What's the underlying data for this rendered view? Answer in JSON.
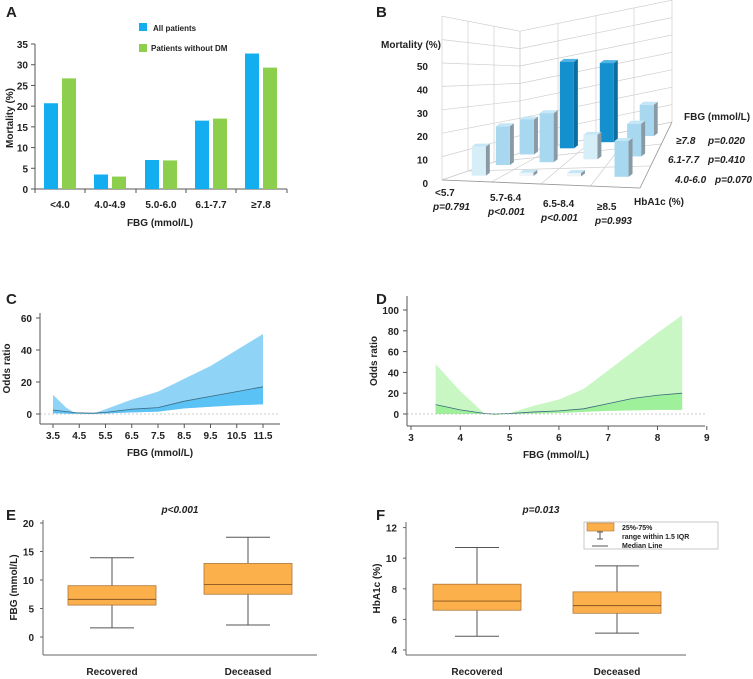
{
  "chart_data": [
    {
      "panel": "A",
      "type": "bar",
      "categories": [
        "<4.0",
        "4.0-4.9",
        "5.0-6.0",
        "6.1-7.7",
        "≥7.8"
      ],
      "series": [
        {
          "name": "All patients",
          "values": [
            20.7,
            3.5,
            7.0,
            16.5,
            32.7
          ],
          "color": "#12aef0"
        },
        {
          "name": "Patients without DM",
          "values": [
            26.7,
            3.0,
            6.9,
            17.0,
            29.3
          ],
          "color": "#8ccf4d"
        }
      ],
      "xlabel": "FBG (mmol/L)",
      "ylabel": "Mortality (%)",
      "ylim": [
        0,
        35
      ],
      "yticks": [
        0,
        5,
        10,
        15,
        20,
        25,
        30,
        35
      ],
      "legend": "top"
    },
    {
      "panel": "B",
      "type": "bar3d",
      "x_categories": [
        "<5.7",
        "5.7-6.4",
        "6.5-8.4",
        "≥8.5"
      ],
      "x_pvalues": [
        "p=0.791",
        "p<0.001",
        "p<0.001",
        "p=0.993"
      ],
      "xlabel": "HbA1c (%)",
      "depth_categories": [
        "4.0-6.0",
        "6.1-7.7",
        "≥7.8"
      ],
      "depth_pvalues": [
        "p=0.070",
        "p=0.410",
        "p=0.020"
      ],
      "depthlabel": "FBG (mmol/L)",
      "zlabel": "Mortality (%)",
      "zticks": [
        0,
        10,
        20,
        30,
        40,
        50
      ],
      "values": [
        [
          13,
          19,
          19
        ],
        [
          1.5,
          24,
          47
        ],
        [
          1.5,
          12,
          43
        ],
        [
          16,
          16,
          17
        ]
      ],
      "colors": {
        "high": "#1590cf",
        "mid": "#a8d8f0",
        "low": "#d6eef8",
        "min": "#eef4f7"
      }
    },
    {
      "panel": "C",
      "type": "area",
      "x": [
        3.5,
        4.0,
        4.4,
        5.0,
        5.5,
        6.5,
        7.5,
        8.5,
        9.5,
        10.5,
        11.5
      ],
      "odds_ratio": [
        2.5,
        1.5,
        0.8,
        0.5,
        1.0,
        3.0,
        4.0,
        8.0,
        11.0,
        14.0,
        17.0
      ],
      "ci_upper": [
        12,
        4,
        0,
        0,
        3,
        9,
        14,
        22,
        30,
        40,
        50
      ],
      "ci_lower": [
        0.5,
        0.2,
        0,
        0,
        0.3,
        1.0,
        1.5,
        3.5,
        4.5,
        5.5,
        6.0
      ],
      "xlabel": "FBG (mmol/L)",
      "ylabel": "Odds ratio",
      "xlim": [
        3.5,
        11.5
      ],
      "ylim": [
        -5,
        62
      ],
      "xticks": [
        "3.5",
        "4.5",
        "5.5",
        "6.5",
        "7.5",
        "8.5",
        "9.5",
        "10.5",
        "11.5"
      ],
      "yticks": [
        0,
        20,
        40,
        60
      ],
      "color": "#5bc2f5",
      "band_color": "#8fd3f7"
    },
    {
      "panel": "D",
      "type": "area",
      "x": [
        3.5,
        4.0,
        4.5,
        4.7,
        5.0,
        5.5,
        6.0,
        6.5,
        7.0,
        7.5,
        8.0,
        8.5
      ],
      "odds_ratio": [
        9,
        4,
        0.5,
        0,
        0.5,
        2,
        3,
        5,
        10,
        15,
        18,
        20
      ],
      "ci_upper": [
        48,
        22,
        0,
        0,
        1,
        8,
        14,
        24,
        42,
        60,
        78,
        95
      ],
      "ci_lower": [
        0,
        0,
        0,
        -1,
        0,
        0.5,
        1,
        2,
        3,
        3.5,
        4,
        4
      ],
      "xlabel": "FBG (mmol/L)",
      "ylabel": "Odds ratio",
      "xlim": [
        3,
        9
      ],
      "ylim": [
        -10,
        108
      ],
      "xticks": [
        "3",
        "4",
        "5",
        "6",
        "7",
        "8",
        "9"
      ],
      "yticks": [
        0,
        20,
        40,
        60,
        80,
        100
      ],
      "color": "#9ff09a",
      "band_color": "#c8f7c4"
    },
    {
      "panel": "E",
      "type": "box",
      "title": "p<0.001",
      "categories": [
        "Recovered",
        "Deceased"
      ],
      "boxes": [
        {
          "min": 1.6,
          "q1": 5.6,
          "median": 6.6,
          "q3": 9.0,
          "max": 13.9
        },
        {
          "min": 2.1,
          "q1": 7.5,
          "median": 9.2,
          "q3": 12.9,
          "max": 17.5
        }
      ],
      "ylabel": "FBG (mmol/L)",
      "ylim": [
        -3,
        20
      ],
      "yticks": [
        0,
        5,
        10,
        15,
        20
      ],
      "color": "#fbb04b"
    },
    {
      "panel": "F",
      "type": "box",
      "title": "p=0.013",
      "categories": [
        "Recovered",
        "Deceased"
      ],
      "boxes": [
        {
          "min": 4.9,
          "q1": 6.6,
          "median": 7.2,
          "q3": 8.3,
          "max": 10.7
        },
        {
          "min": 5.1,
          "q1": 6.4,
          "median": 6.9,
          "q3": 7.8,
          "max": 9.5
        }
      ],
      "ylabel": "HbA1c (%)",
      "ylim": [
        3.7,
        12
      ],
      "yticks": [
        4,
        6,
        8,
        10,
        12
      ],
      "legend": [
        "25%-75%",
        "range within 1.5 IQR",
        "Median Line"
      ],
      "legend_placement": "top-right",
      "color": "#fbb04b"
    }
  ]
}
